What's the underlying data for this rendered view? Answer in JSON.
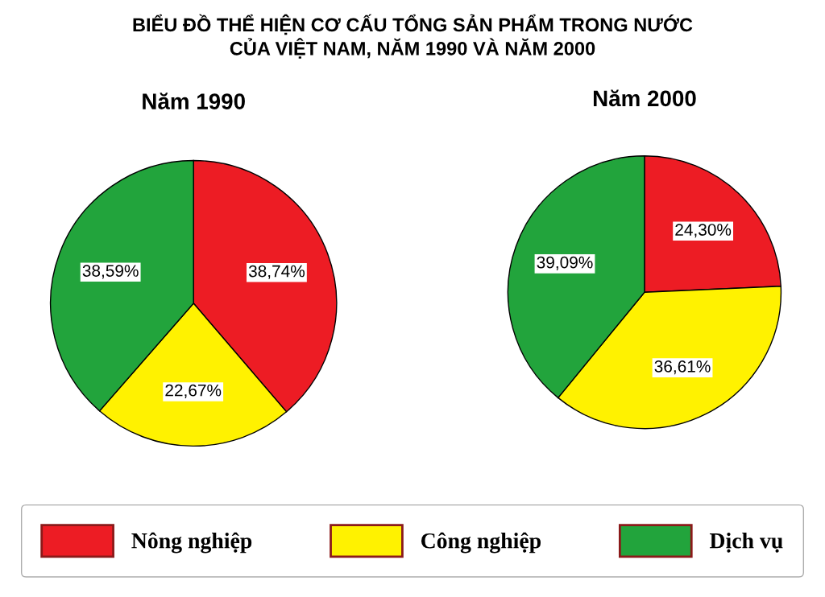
{
  "chart_data": [
    {
      "type": "pie",
      "title": "Năm 1990",
      "annotations": [
        "BIỂU ĐỒ THỂ HIỆN CƠ CẤU TỔNG SẢN PHẨM TRONG NƯỚC\nCỦA VIỆT NAM, NĂM 1990 VÀ NĂM 2000"
      ],
      "categories": [
        "Nông nghiệp",
        "Công nghiệp",
        "Dịch vụ"
      ],
      "values": [
        38.74,
        22.67,
        38.59
      ],
      "value_labels": [
        "38,74%",
        "22,67%",
        "38,59%"
      ],
      "colors": [
        "#ed1c24",
        "#fff200",
        "#22a43c"
      ],
      "legend": "bottom"
    },
    {
      "type": "pie",
      "title": "Năm 2000",
      "categories": [
        null,
        null,
        null
      ],
      "values": [
        24.3,
        36.61,
        39.09
      ],
      "value_labels": [
        "24,30%",
        "36,61%",
        "39,09%"
      ],
      "colors": [
        "#ed1c24",
        "#fff200",
        "#22a43c"
      ]
    }
  ]
}
